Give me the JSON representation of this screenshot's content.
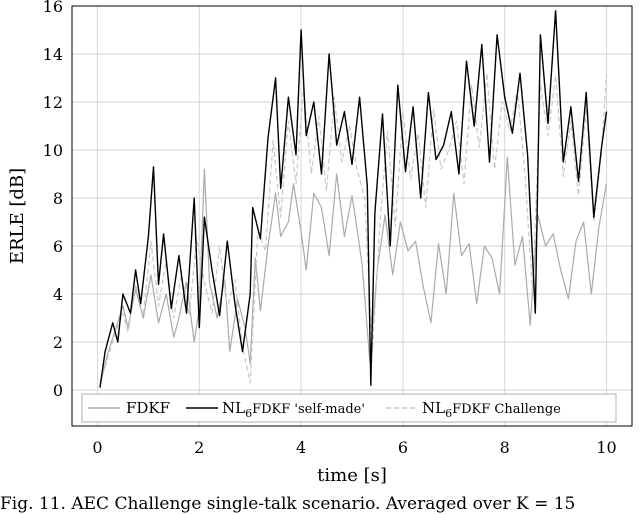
{
  "chart_data": {
    "type": "line",
    "title": "",
    "xlabel": "time [s]",
    "ylabel": "ERLE [dB]",
    "xlim": [
      -0.5,
      10.5
    ],
    "ylim": [
      -1.5,
      16
    ],
    "xticks": [
      0,
      2,
      4,
      6,
      8,
      10
    ],
    "yticks": [
      0,
      2,
      4,
      6,
      8,
      10,
      12,
      14,
      16
    ],
    "grid": true,
    "legend_position": "bottom",
    "series": [
      {
        "name": "FDKF",
        "color": "#aaaaaa",
        "style": "solid",
        "x": [
          0.05,
          0.2,
          0.35,
          0.5,
          0.6,
          0.75,
          0.9,
          1.05,
          1.2,
          1.35,
          1.5,
          1.6,
          1.75,
          1.9,
          2.0,
          2.1,
          2.2,
          2.35,
          2.5,
          2.6,
          2.75,
          2.9,
          3.0,
          3.1,
          3.2,
          3.35,
          3.5,
          3.6,
          3.75,
          3.85,
          4.0,
          4.1,
          4.25,
          4.4,
          4.55,
          4.7,
          4.85,
          5.0,
          5.1,
          5.2,
          5.35,
          5.5,
          5.65,
          5.8,
          5.95,
          6.1,
          6.25,
          6.4,
          6.55,
          6.7,
          6.85,
          7.0,
          7.15,
          7.3,
          7.45,
          7.6,
          7.75,
          7.9,
          8.05,
          8.2,
          8.35,
          8.5,
          8.65,
          8.8,
          8.95,
          9.1,
          9.25,
          9.4,
          9.55,
          9.7,
          9.85,
          10.0
        ],
        "y": [
          0.2,
          1.5,
          2.5,
          3.5,
          2.6,
          4.2,
          3.0,
          4.8,
          2.8,
          4.0,
          2.2,
          3.0,
          4.5,
          2.0,
          3.4,
          9.2,
          4.5,
          3.0,
          4.6,
          1.6,
          3.8,
          2.6,
          1.1,
          5.5,
          3.3,
          6.0,
          8.2,
          6.4,
          7.0,
          8.6,
          6.6,
          5.0,
          8.2,
          7.6,
          5.6,
          9.0,
          6.4,
          8.1,
          6.7,
          5.2,
          1.2,
          5.1,
          7.3,
          4.8,
          7.0,
          5.8,
          6.2,
          4.3,
          2.8,
          6.1,
          4.0,
          8.2,
          5.6,
          6.1,
          3.6,
          6.0,
          5.5,
          4.0,
          9.7,
          5.2,
          6.4,
          2.7,
          7.3,
          6.0,
          6.5,
          5.0,
          3.8,
          6.2,
          7.0,
          4.0,
          6.8,
          8.6
        ]
      },
      {
        "name": "NL6FDKF 'self-made'",
        "color": "#000000",
        "style": "solid",
        "x": [
          0.05,
          0.15,
          0.3,
          0.4,
          0.5,
          0.65,
          0.75,
          0.85,
          1.0,
          1.1,
          1.2,
          1.3,
          1.45,
          1.6,
          1.75,
          1.9,
          2.0,
          2.1,
          2.25,
          2.4,
          2.55,
          2.7,
          2.85,
          3.0,
          3.05,
          3.2,
          3.35,
          3.5,
          3.6,
          3.75,
          3.9,
          4.0,
          4.1,
          4.25,
          4.4,
          4.55,
          4.7,
          4.85,
          5.0,
          5.15,
          5.3,
          5.37,
          5.45,
          5.6,
          5.75,
          5.9,
          6.05,
          6.2,
          6.35,
          6.5,
          6.65,
          6.8,
          6.95,
          7.1,
          7.25,
          7.4,
          7.55,
          7.7,
          7.85,
          8.0,
          8.15,
          8.3,
          8.45,
          8.6,
          8.7,
          8.85,
          9.0,
          9.15,
          9.3,
          9.45,
          9.6,
          9.75,
          9.9,
          10.0
        ],
        "y": [
          0.1,
          1.6,
          2.8,
          2.0,
          4.0,
          3.2,
          5.0,
          3.6,
          6.4,
          9.3,
          4.4,
          6.5,
          3.4,
          5.6,
          3.2,
          8.0,
          2.6,
          7.2,
          5.0,
          3.1,
          6.2,
          3.6,
          1.6,
          4.0,
          7.6,
          6.3,
          10.5,
          13.0,
          8.4,
          12.2,
          9.8,
          15.0,
          10.6,
          12.0,
          9.0,
          14.0,
          10.2,
          11.6,
          9.4,
          12.2,
          8.5,
          0.2,
          7.4,
          11.5,
          6.0,
          12.7,
          9.1,
          11.8,
          8.0,
          12.4,
          9.6,
          10.2,
          11.6,
          9.0,
          13.7,
          11.0,
          14.4,
          9.5,
          14.8,
          12.2,
          10.7,
          13.2,
          9.8,
          3.2,
          14.8,
          11.1,
          15.8,
          9.5,
          11.8,
          8.7,
          12.4,
          7.2,
          10.1,
          11.6
        ]
      },
      {
        "name": "NL6FDKF Challenge",
        "color": "#c8c8c8",
        "style": "dashed",
        "x": [
          0.05,
          0.2,
          0.35,
          0.5,
          0.6,
          0.75,
          0.9,
          1.05,
          1.2,
          1.35,
          1.5,
          1.65,
          1.8,
          1.95,
          2.1,
          2.25,
          2.4,
          2.55,
          2.7,
          2.85,
          3.0,
          3.15,
          3.3,
          3.45,
          3.6,
          3.75,
          3.9,
          4.05,
          4.2,
          4.35,
          4.5,
          4.65,
          4.8,
          4.95,
          5.1,
          5.25,
          5.4,
          5.55,
          5.7,
          5.85,
          6.0,
          6.15,
          6.3,
          6.45,
          6.6,
          6.75,
          6.9,
          7.05,
          7.2,
          7.35,
          7.5,
          7.65,
          7.8,
          7.95,
          8.1,
          8.25,
          8.4,
          8.55,
          8.7,
          8.85,
          9.0,
          9.15,
          9.3,
          9.45,
          9.6,
          9.75,
          9.9,
          10.0
        ],
        "y": [
          0.3,
          1.3,
          2.4,
          3.2,
          2.4,
          4.4,
          3.1,
          6.2,
          3.5,
          5.4,
          3.0,
          4.8,
          3.1,
          6.3,
          4.5,
          3.2,
          6.0,
          3.4,
          4.6,
          1.8,
          0.3,
          6.6,
          5.8,
          10.4,
          7.2,
          11.2,
          8.6,
          12.6,
          9.0,
          11.4,
          8.3,
          12.2,
          9.5,
          11.0,
          9.2,
          8.0,
          1.6,
          7.0,
          10.8,
          6.8,
          11.6,
          8.8,
          10.7,
          7.6,
          11.7,
          9.2,
          10.0,
          11.2,
          8.6,
          12.7,
          10.1,
          13.2,
          9.2,
          12.0,
          10.8,
          12.5,
          8.9,
          4.0,
          12.7,
          10.6,
          13.1,
          8.9,
          11.2,
          8.1,
          11.7,
          7.0,
          9.9,
          13.2
        ]
      }
    ]
  },
  "legend": {
    "items": [
      {
        "label": "FDKF"
      },
      {
        "label_main": "NL",
        "label_sub": "6",
        "label_rest": "FDKF 'self-made'"
      },
      {
        "label_main": "NL",
        "label_sub": "6",
        "label_rest": "FDKF Challenge"
      }
    ]
  },
  "caption": {
    "text": "Fig. 11.   AEC Challenge single-talk scenario. Averaged over K = 15"
  }
}
